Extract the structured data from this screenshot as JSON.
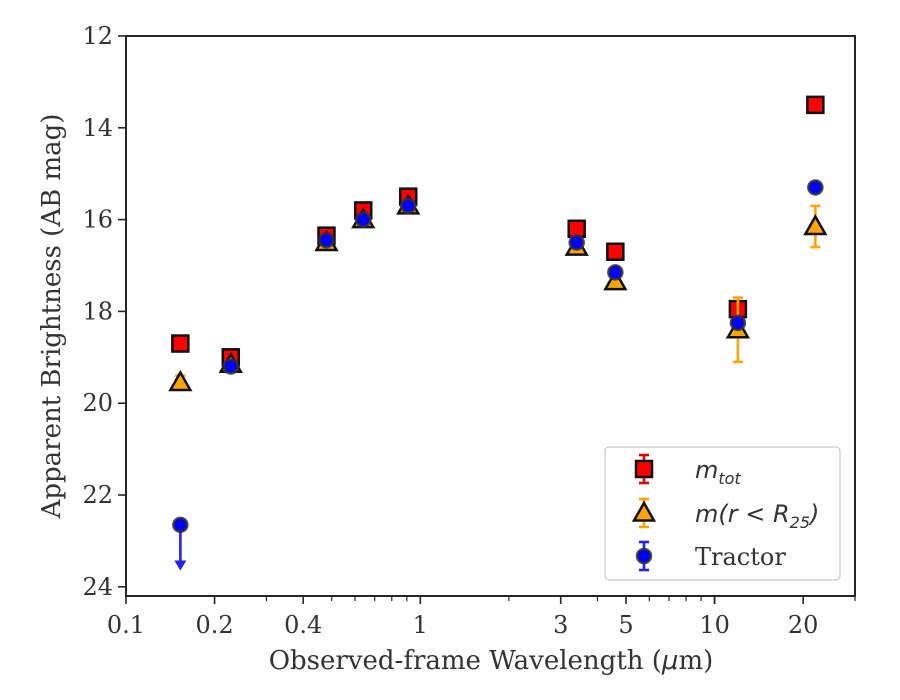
{
  "chart_data": {
    "type": "scatter",
    "xlabel_main": "Observed-frame Wavelength (",
    "xlabel_mu": "μ",
    "xlabel_end": "m)",
    "ylabel": "Apparent Brightness (AB mag)",
    "x_scale": "log",
    "xlim": [
      0.1,
      30
    ],
    "ylim": [
      24.2,
      12
    ],
    "y_inverted": true,
    "x_ticks": [
      {
        "value": 0.1,
        "label": "0.1"
      },
      {
        "value": 0.2,
        "label": "0.2"
      },
      {
        "value": 0.4,
        "label": "0.4"
      },
      {
        "value": 1,
        "label": "1"
      },
      {
        "value": 3,
        "label": "3"
      },
      {
        "value": 5,
        "label": "5"
      },
      {
        "value": 10,
        "label": "10"
      },
      {
        "value": 20,
        "label": "20"
      }
    ],
    "y_ticks": [
      {
        "value": 12,
        "label": "12"
      },
      {
        "value": 14,
        "label": "14"
      },
      {
        "value": 16,
        "label": "16"
      },
      {
        "value": 18,
        "label": "18"
      },
      {
        "value": 20,
        "label": "20"
      },
      {
        "value": 22,
        "label": "22"
      },
      {
        "value": 24,
        "label": "24"
      }
    ],
    "grid": false,
    "legend_position": "lower-right",
    "series": [
      {
        "name": "m_tot",
        "marker": "square",
        "color": "#ff0000",
        "errcolor": "#dd0000",
        "points": [
          {
            "x": 0.153,
            "y": 18.7
          },
          {
            "x": 0.227,
            "y": 19.0
          },
          {
            "x": 0.48,
            "y": 16.35
          },
          {
            "x": 0.64,
            "y": 15.8
          },
          {
            "x": 0.91,
            "y": 15.5
          },
          {
            "x": 3.4,
            "y": 16.2
          },
          {
            "x": 4.6,
            "y": 16.7
          },
          {
            "x": 12.0,
            "y": 17.95
          },
          {
            "x": 22.0,
            "y": 13.5
          }
        ]
      },
      {
        "name": "m(r<R25)",
        "marker": "triangle",
        "color": "#ffa500",
        "errcolor": "#ffa500",
        "points": [
          {
            "x": 0.153,
            "y": 19.55,
            "err": 0.15
          },
          {
            "x": 0.227,
            "y": 19.15
          },
          {
            "x": 0.48,
            "y": 16.5
          },
          {
            "x": 0.64,
            "y": 16.0
          },
          {
            "x": 0.91,
            "y": 15.7
          },
          {
            "x": 3.4,
            "y": 16.6
          },
          {
            "x": 4.6,
            "y": 17.35
          },
          {
            "x": 12.0,
            "y": 18.4,
            "err": 0.7
          },
          {
            "x": 22.0,
            "y": 16.15,
            "err": 0.45
          }
        ]
      },
      {
        "name": "Tractor",
        "marker": "circle",
        "color": "#0000ff",
        "errcolor": "#2222ee",
        "points": [
          {
            "x": 0.153,
            "y": 22.65,
            "upper_limit": true,
            "arrow_to": 23.6
          },
          {
            "x": 0.227,
            "y": 19.2
          },
          {
            "x": 0.48,
            "y": 16.45
          },
          {
            "x": 0.64,
            "y": 16.0
          },
          {
            "x": 0.91,
            "y": 15.7
          },
          {
            "x": 3.4,
            "y": 16.5
          },
          {
            "x": 4.6,
            "y": 17.15
          },
          {
            "x": 12.0,
            "y": 18.25
          },
          {
            "x": 22.0,
            "y": 15.3
          }
        ]
      }
    ],
    "legend": [
      {
        "marker": "square",
        "label": "m",
        "sub": "tot"
      },
      {
        "marker": "triangle",
        "label": "m(r < R",
        "sub": "25",
        "tail": ")"
      },
      {
        "marker": "circle",
        "label": "Tractor"
      }
    ]
  }
}
